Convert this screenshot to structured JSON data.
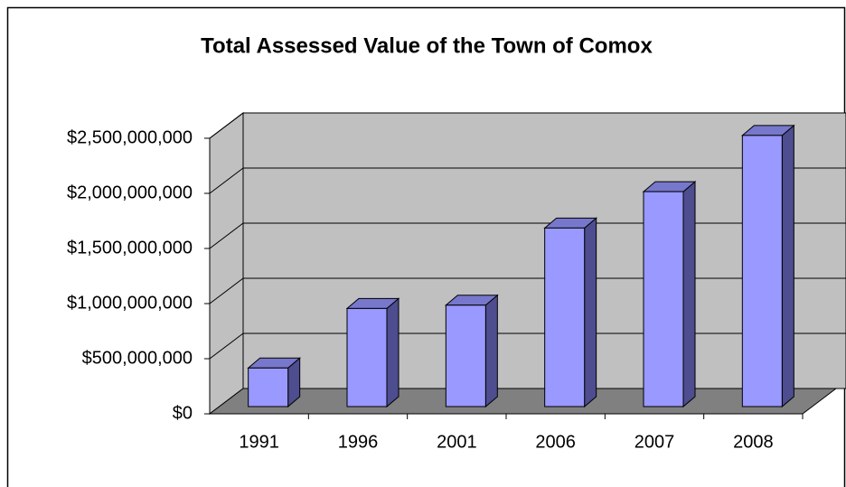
{
  "chart_data": {
    "type": "bar3d",
    "title": "Total Assessed Value of the Town of Comox",
    "categories": [
      "1991",
      "1996",
      "2001",
      "2006",
      "2007",
      "2008"
    ],
    "values": [
      350000000,
      890000000,
      920000000,
      1620000000,
      1950000000,
      2460000000
    ],
    "color": "#9999ff",
    "ylim": [
      0,
      2500000000
    ],
    "yticks": [
      {
        "value": 0,
        "label": "$0"
      },
      {
        "value": 500000000,
        "label": "$500,000,000"
      },
      {
        "value": 1000000000,
        "label": "$1,000,000,000"
      },
      {
        "value": 1500000000,
        "label": "$1,500,000,000"
      },
      {
        "value": 2000000000,
        "label": "$2,000,000,000"
      },
      {
        "value": 2500000000,
        "label": "$2,500,000,000"
      }
    ],
    "grid": true
  }
}
